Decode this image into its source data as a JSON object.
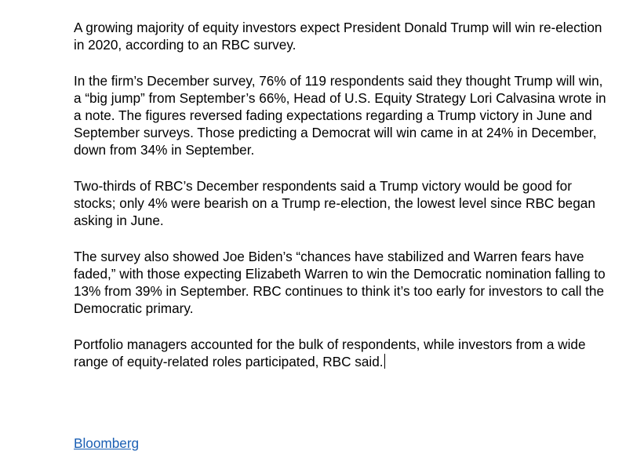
{
  "article": {
    "paragraphs": [
      "A growing majority of equity investors expect President Donald Trump will win re-election in 2020, according to an RBC survey.",
      "In the firm’s December survey, 76% of 119 respondents said they thought Trump will win, a “big jump” from September’s 66%, Head of U.S. Equity Strategy Lori Calvasina wrote in a note. The figures reversed fading expectations regarding a Trump victory in June and September surveys. Those predicting a Democrat will win came in at 24% in December, down from 34% in September.",
      "Two-thirds of RBC’s December respondents said a Trump victory would be good for stocks; only 4% were bearish on a Trump re-election, the lowest level since RBC began asking in June.",
      "The survey also showed Joe Biden’s “chances have stabilized and Warren fears have faded,” with those expecting Elizabeth Warren to win the Democratic nomination falling to 13% from 39% in September. RBC continues to think it’s too early for investors to call the Democratic primary.",
      "Portfolio managers accounted for the bulk of respondents, while investors from a wide range of equity-related roles participated, RBC said."
    ],
    "source_link": "Bloomberg"
  },
  "colors": {
    "text": "#000000",
    "link": "#1a5fb4",
    "background": "#ffffff"
  }
}
